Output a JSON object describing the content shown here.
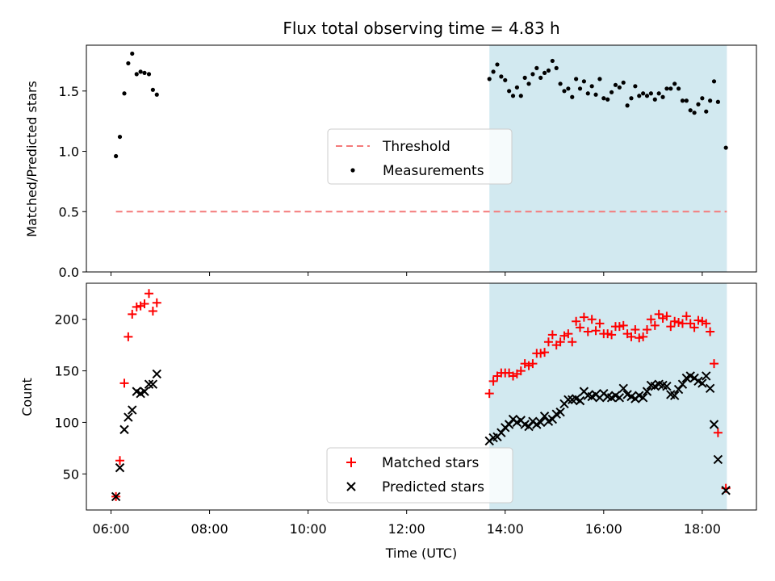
{
  "chart_data": [
    {
      "type": "scatter",
      "title": "Flux total observing time = 4.83 h",
      "ylabel": "Matched/Predicted stars",
      "xlabel": "",
      "xlim": [
        5.5,
        19.1
      ],
      "ylim": [
        0,
        1.88
      ],
      "yticks": [
        0.0,
        0.5,
        1.0,
        1.5
      ],
      "ytick_labels": [
        "0.0",
        "0.5",
        "1.0",
        "1.5"
      ],
      "xticks": [
        6,
        8,
        10,
        12,
        14,
        16,
        18
      ],
      "shaded_region": {
        "x0": 13.68,
        "x1": 18.5,
        "color": "#d2e9f0"
      },
      "threshold": {
        "name": "Threshold",
        "x0": 6.1,
        "x1": 18.5,
        "value": 0.5,
        "color": "#f47a7a"
      },
      "series": [
        {
          "name": "Measurements",
          "color": "#000000",
          "points": [
            [
              6.1,
              0.96
            ],
            [
              6.18,
              1.12
            ],
            [
              6.27,
              1.48
            ],
            [
              6.35,
              1.73
            ],
            [
              6.43,
              1.81
            ],
            [
              6.52,
              1.64
            ],
            [
              6.6,
              1.66
            ],
            [
              6.68,
              1.65
            ],
            [
              6.77,
              1.64
            ],
            [
              6.85,
              1.51
            ],
            [
              6.93,
              1.47
            ],
            [
              13.68,
              1.6
            ],
            [
              13.76,
              1.66
            ],
            [
              13.84,
              1.72
            ],
            [
              13.92,
              1.62
            ],
            [
              14.0,
              1.59
            ],
            [
              14.08,
              1.5
            ],
            [
              14.16,
              1.46
            ],
            [
              14.24,
              1.53
            ],
            [
              14.32,
              1.46
            ],
            [
              14.4,
              1.61
            ],
            [
              14.48,
              1.56
            ],
            [
              14.56,
              1.64
            ],
            [
              14.64,
              1.69
            ],
            [
              14.72,
              1.61
            ],
            [
              14.8,
              1.65
            ],
            [
              14.88,
              1.67
            ],
            [
              14.96,
              1.75
            ],
            [
              15.04,
              1.69
            ],
            [
              15.12,
              1.56
            ],
            [
              15.2,
              1.5
            ],
            [
              15.28,
              1.52
            ],
            [
              15.36,
              1.45
            ],
            [
              15.44,
              1.6
            ],
            [
              15.52,
              1.52
            ],
            [
              15.6,
              1.58
            ],
            [
              15.68,
              1.48
            ],
            [
              15.76,
              1.54
            ],
            [
              15.84,
              1.47
            ],
            [
              15.92,
              1.6
            ],
            [
              16.0,
              1.44
            ],
            [
              16.08,
              1.43
            ],
            [
              16.16,
              1.49
            ],
            [
              16.24,
              1.55
            ],
            [
              16.32,
              1.53
            ],
            [
              16.4,
              1.57
            ],
            [
              16.48,
              1.38
            ],
            [
              16.56,
              1.44
            ],
            [
              16.64,
              1.54
            ],
            [
              16.72,
              1.46
            ],
            [
              16.8,
              1.48
            ],
            [
              16.88,
              1.46
            ],
            [
              16.96,
              1.48
            ],
            [
              17.04,
              1.43
            ],
            [
              17.12,
              1.48
            ],
            [
              17.2,
              1.45
            ],
            [
              17.28,
              1.52
            ],
            [
              17.36,
              1.52
            ],
            [
              17.44,
              1.56
            ],
            [
              17.52,
              1.52
            ],
            [
              17.6,
              1.42
            ],
            [
              17.68,
              1.42
            ],
            [
              17.76,
              1.34
            ],
            [
              17.84,
              1.32
            ],
            [
              17.92,
              1.39
            ],
            [
              18.0,
              1.44
            ],
            [
              18.08,
              1.33
            ],
            [
              18.16,
              1.42
            ],
            [
              18.24,
              1.58
            ],
            [
              18.32,
              1.41
            ],
            [
              18.48,
              1.03
            ]
          ]
        }
      ],
      "legend": {
        "location": "center",
        "entries": [
          "Threshold",
          "Measurements"
        ]
      }
    },
    {
      "type": "scatter",
      "title": "",
      "ylabel": "Count",
      "xlabel": "Time (UTC)",
      "xlim": [
        5.5,
        19.1
      ],
      "ylim": [
        15,
        235
      ],
      "yticks": [
        50,
        100,
        150,
        200
      ],
      "ytick_labels": [
        "50",
        "100",
        "150",
        "200"
      ],
      "xticks": [
        6,
        8,
        10,
        12,
        14,
        16,
        18
      ],
      "xtick_labels": [
        "06:00",
        "08:00",
        "10:00",
        "12:00",
        "14:00",
        "16:00",
        "18:00"
      ],
      "shaded_region": {
        "x0": 13.68,
        "x1": 18.5,
        "color": "#d2e9f0"
      },
      "series": [
        {
          "name": "Matched stars",
          "marker": "plus",
          "color": "#ff0000",
          "points": [
            [
              6.1,
              28
            ],
            [
              6.18,
              63
            ],
            [
              6.27,
              138
            ],
            [
              6.35,
              183
            ],
            [
              6.43,
              205
            ],
            [
              6.52,
              212
            ],
            [
              6.6,
              213
            ],
            [
              6.68,
              215
            ],
            [
              6.77,
              225
            ],
            [
              6.85,
              208
            ],
            [
              6.93,
              216
            ],
            [
              13.68,
              128
            ],
            [
              13.76,
              140
            ],
            [
              13.84,
              145
            ],
            [
              13.92,
              148
            ],
            [
              14.0,
              148
            ],
            [
              14.08,
              148
            ],
            [
              14.16,
              145
            ],
            [
              14.24,
              147
            ],
            [
              14.32,
              150
            ],
            [
              14.4,
              157
            ],
            [
              14.48,
              155
            ],
            [
              14.56,
              157
            ],
            [
              14.64,
              167
            ],
            [
              14.72,
              167
            ],
            [
              14.8,
              168
            ],
            [
              14.88,
              178
            ],
            [
              14.96,
              185
            ],
            [
              15.04,
              175
            ],
            [
              15.12,
              178
            ],
            [
              15.2,
              184
            ],
            [
              15.28,
              186
            ],
            [
              15.36,
              178
            ],
            [
              15.44,
              198
            ],
            [
              15.52,
              192
            ],
            [
              15.6,
              202
            ],
            [
              15.68,
              188
            ],
            [
              15.76,
              200
            ],
            [
              15.84,
              189
            ],
            [
              15.92,
              196
            ],
            [
              16.0,
              186
            ],
            [
              16.08,
              186
            ],
            [
              16.16,
              185
            ],
            [
              16.24,
              193
            ],
            [
              16.32,
              193
            ],
            [
              16.4,
              194
            ],
            [
              16.48,
              186
            ],
            [
              16.56,
              183
            ],
            [
              16.64,
              190
            ],
            [
              16.72,
              182
            ],
            [
              16.8,
              183
            ],
            [
              16.88,
              190
            ],
            [
              16.96,
              200
            ],
            [
              17.04,
              194
            ],
            [
              17.12,
              205
            ],
            [
              17.2,
              201
            ],
            [
              17.28,
              203
            ],
            [
              17.36,
              193
            ],
            [
              17.44,
              198
            ],
            [
              17.52,
              197
            ],
            [
              17.6,
              196
            ],
            [
              17.68,
              203
            ],
            [
              17.76,
              196
            ],
            [
              17.84,
              192
            ],
            [
              17.92,
              199
            ],
            [
              18.0,
              198
            ],
            [
              18.08,
              196
            ],
            [
              18.16,
              188
            ],
            [
              18.24,
              157
            ],
            [
              18.32,
              90
            ],
            [
              18.48,
              36
            ]
          ]
        },
        {
          "name": "Predicted stars",
          "marker": "x",
          "color": "#000000",
          "points": [
            [
              6.1,
              28
            ],
            [
              6.18,
              56
            ],
            [
              6.27,
              93
            ],
            [
              6.35,
              105
            ],
            [
              6.43,
              112
            ],
            [
              6.52,
              130
            ],
            [
              6.6,
              128
            ],
            [
              6.68,
              130
            ],
            [
              6.77,
              137
            ],
            [
              6.85,
              137
            ],
            [
              6.93,
              147
            ],
            [
              13.68,
              82
            ],
            [
              13.76,
              85
            ],
            [
              13.84,
              86
            ],
            [
              13.92,
              90
            ],
            [
              14.0,
              95
            ],
            [
              14.08,
              98
            ],
            [
              14.16,
              103
            ],
            [
              14.24,
              100
            ],
            [
              14.32,
              102
            ],
            [
              14.4,
              98
            ],
            [
              14.48,
              96
            ],
            [
              14.56,
              101
            ],
            [
              14.64,
              98
            ],
            [
              14.72,
              100
            ],
            [
              14.8,
              106
            ],
            [
              14.88,
              101
            ],
            [
              14.96,
              103
            ],
            [
              15.04,
              108
            ],
            [
              15.12,
              110
            ],
            [
              15.2,
              118
            ],
            [
              15.28,
              122
            ],
            [
              15.36,
              122
            ],
            [
              15.44,
              123
            ],
            [
              15.52,
              121
            ],
            [
              15.6,
              130
            ],
            [
              15.68,
              126
            ],
            [
              15.76,
              125
            ],
            [
              15.84,
              127
            ],
            [
              15.92,
              124
            ],
            [
              16.0,
              128
            ],
            [
              16.08,
              125
            ],
            [
              16.16,
              124
            ],
            [
              16.24,
              126
            ],
            [
              16.32,
              124
            ],
            [
              16.4,
              133
            ],
            [
              16.48,
              127
            ],
            [
              16.56,
              125
            ],
            [
              16.64,
              123
            ],
            [
              16.72,
              126
            ],
            [
              16.8,
              124
            ],
            [
              16.88,
              130
            ],
            [
              16.96,
              136
            ],
            [
              17.04,
              135
            ],
            [
              17.12,
              137
            ],
            [
              17.2,
              136
            ],
            [
              17.28,
              135
            ],
            [
              17.36,
              127
            ],
            [
              17.44,
              126
            ],
            [
              17.52,
              132
            ],
            [
              17.6,
              137
            ],
            [
              17.68,
              143
            ],
            [
              17.76,
              145
            ],
            [
              17.84,
              143
            ],
            [
              17.92,
              140
            ],
            [
              18.0,
              138
            ],
            [
              18.08,
              145
            ],
            [
              18.16,
              133
            ],
            [
              18.24,
              98
            ],
            [
              18.32,
              64
            ],
            [
              18.48,
              34
            ]
          ]
        }
      ],
      "legend": {
        "location": "lower center",
        "entries": [
          "Matched stars",
          "Predicted stars"
        ]
      }
    }
  ]
}
